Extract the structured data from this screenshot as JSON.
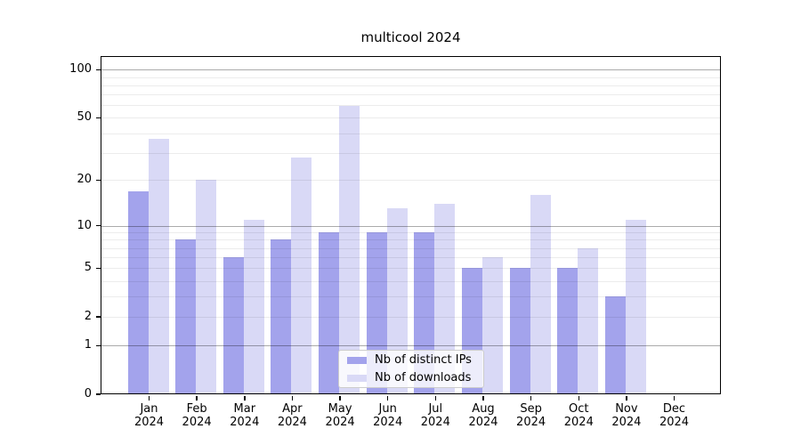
{
  "title": "multicool 2024",
  "chart_data": {
    "type": "bar",
    "title": "multicool 2024",
    "categories": [
      "Jan 2024",
      "Feb 2024",
      "Mar 2024",
      "Apr 2024",
      "May 2024",
      "Jun 2024",
      "Jul 2024",
      "Aug 2024",
      "Sep 2024",
      "Oct 2024",
      "Nov 2024",
      "Dec 2024"
    ],
    "months": [
      "Jan",
      "Feb",
      "Mar",
      "Apr",
      "May",
      "Jun",
      "Jul",
      "Aug",
      "Sep",
      "Oct",
      "Nov",
      "Dec"
    ],
    "year_label": "2024",
    "series": [
      {
        "name": "Nb of distinct IPs",
        "color": "#a3a3ec",
        "values": [
          17,
          8,
          6,
          8,
          9,
          9,
          9,
          5,
          5,
          5,
          3,
          0
        ]
      },
      {
        "name": "Nb of downloads",
        "color": "#d9d9f6",
        "values": [
          37,
          20,
          11,
          28,
          59,
          13,
          14,
          6,
          16,
          7,
          11,
          0
        ]
      }
    ],
    "xlabel": "",
    "ylabel": "",
    "y_axis": {
      "scale": "log1p",
      "tick_values": [
        0,
        1,
        2,
        5,
        10,
        20,
        50,
        100
      ],
      "tick_labels": [
        "0",
        "1",
        "2",
        "5",
        "10",
        "20",
        "50",
        "100"
      ],
      "ylim": [
        0,
        120
      ],
      "major_gridlines": [
        1,
        10,
        100
      ],
      "minor_gridlines": [
        2,
        3,
        4,
        5,
        6,
        7,
        8,
        9,
        20,
        30,
        40,
        50,
        60,
        70,
        80,
        90
      ]
    },
    "grid": "on",
    "legend": {
      "position": "lower center",
      "entries": [
        "Nb of distinct IPs",
        "Nb of downloads"
      ]
    }
  }
}
